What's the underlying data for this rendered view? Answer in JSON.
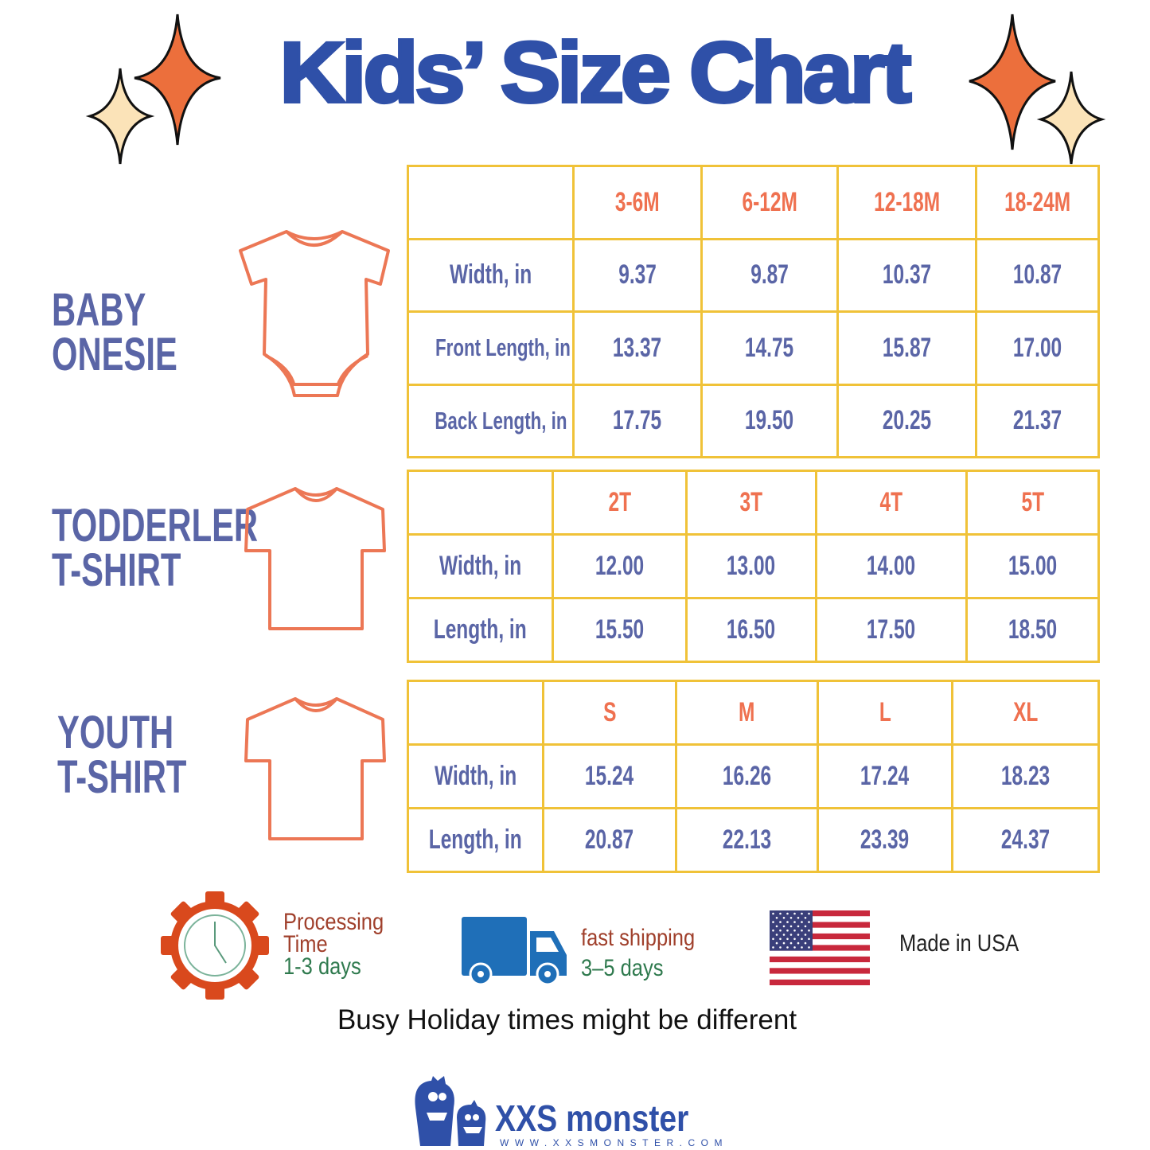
{
  "title": "Kids’ Size Chart",
  "colors": {
    "title": "#2f50a8",
    "label": "#5a65a6",
    "header": "#ef7150",
    "grid": "#f0c238",
    "icon_stroke": "#ec7755"
  },
  "sections": [
    {
      "name_lines": [
        "BABY",
        "ONESIE"
      ],
      "icon": "onesie-icon",
      "sizes": [
        "3-6M",
        "6-12M",
        "12-18M",
        "18-24M"
      ],
      "rows": [
        {
          "label": "Width, in",
          "values": [
            "9.37",
            "9.87",
            "10.37",
            "10.87"
          ]
        },
        {
          "label": "Front Length, in",
          "values": [
            "13.37",
            "14.75",
            "15.87",
            "17.00"
          ]
        },
        {
          "label": "Back Length, in",
          "values": [
            "17.75",
            "19.50",
            "20.25",
            "21.37"
          ]
        }
      ]
    },
    {
      "name_lines": [
        "TODDERLER",
        "T-SHIRT"
      ],
      "icon": "tshirt-icon",
      "sizes": [
        "2T",
        "3T",
        "4T",
        "5T"
      ],
      "rows": [
        {
          "label": "Width, in",
          "values": [
            "12.00",
            "13.00",
            "14.00",
            "15.00"
          ]
        },
        {
          "label": "Length, in",
          "values": [
            "15.50",
            "16.50",
            "17.50",
            "18.50"
          ]
        }
      ]
    },
    {
      "name_lines": [
        "YOUTH",
        "T-SHIRT"
      ],
      "icon": "tshirt-icon",
      "sizes": [
        "S",
        "M",
        "L",
        "XL"
      ],
      "rows": [
        {
          "label": "Width, in",
          "values": [
            "15.24",
            "16.26",
            "17.24",
            "18.23"
          ]
        },
        {
          "label": "Length, in",
          "values": [
            "20.87",
            "22.13",
            "23.39",
            "24.37"
          ]
        }
      ]
    }
  ],
  "info": {
    "processing": {
      "line1": "Processing",
      "line2": "Time",
      "line3": "1-3 days",
      "icon": "gear-clock-icon"
    },
    "shipping": {
      "line1": "fast shipping",
      "line2": "3–5 days",
      "icon": "truck-icon"
    },
    "usa": {
      "text": "Made in USA",
      "icon": "us-flag-icon"
    }
  },
  "note": "Busy Holiday times might be different",
  "brand": {
    "name": "XXS monster",
    "url": "WWW.XXSMONSTER.COM",
    "icon": "monster-logo-icon"
  }
}
